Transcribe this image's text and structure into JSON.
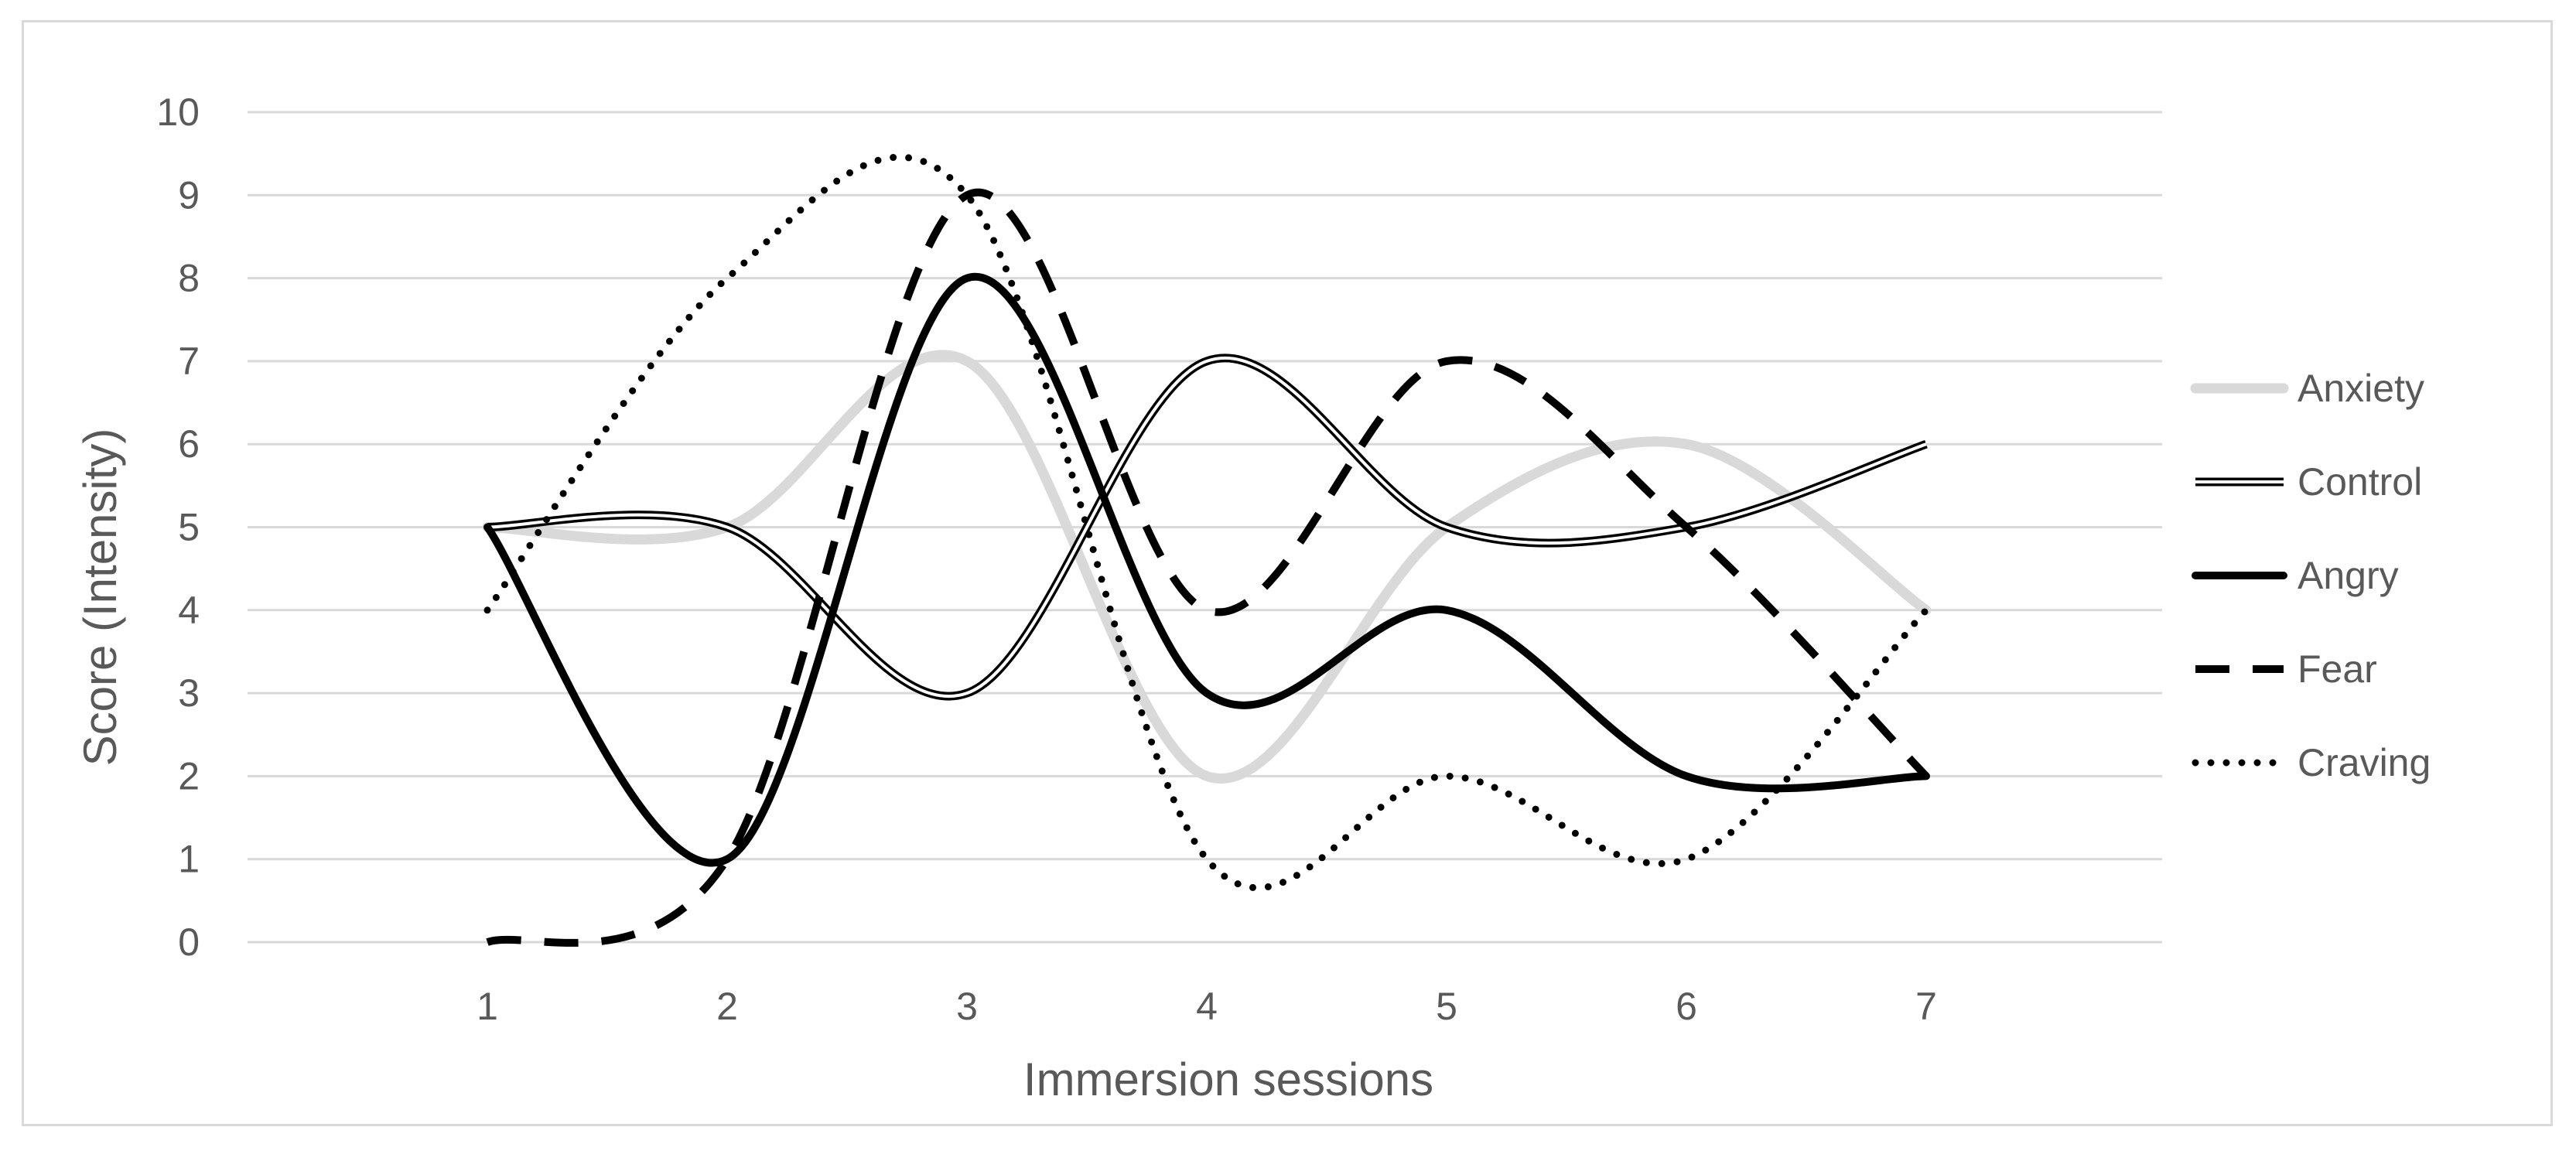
{
  "chart_data": {
    "type": "line",
    "smooth": true,
    "categories": [
      "1",
      "2",
      "3",
      "4",
      "5",
      "6",
      "7"
    ],
    "xlabel": "Immersion sessions",
    "ylabel": "Score (Intensity)",
    "ylim": [
      0,
      10
    ],
    "yticks": [
      "0",
      "1",
      "2",
      "3",
      "4",
      "5",
      "6",
      "7",
      "8",
      "9",
      "10"
    ],
    "grid": true,
    "legend_position": "right",
    "series": [
      {
        "name": "Anxiety",
        "values": [
          5,
          5,
          7,
          2,
          5,
          6,
          4
        ],
        "color": "#d9d9d9",
        "style": "thick-solid"
      },
      {
        "name": "Control",
        "values": [
          5,
          5,
          3,
          7,
          5,
          5,
          6
        ],
        "color": "#000000",
        "style": "double"
      },
      {
        "name": "Angry",
        "values": [
          5,
          1,
          8,
          3,
          4,
          2,
          2
        ],
        "color": "#000000",
        "style": "solid"
      },
      {
        "name": "Fear",
        "values": [
          0,
          1,
          9,
          4,
          7,
          5,
          2
        ],
        "color": "#000000",
        "style": "dashed"
      },
      {
        "name": "Craving",
        "values": [
          4,
          8,
          9,
          1,
          2,
          1,
          4
        ],
        "color": "#000000",
        "style": "dotted"
      }
    ]
  }
}
